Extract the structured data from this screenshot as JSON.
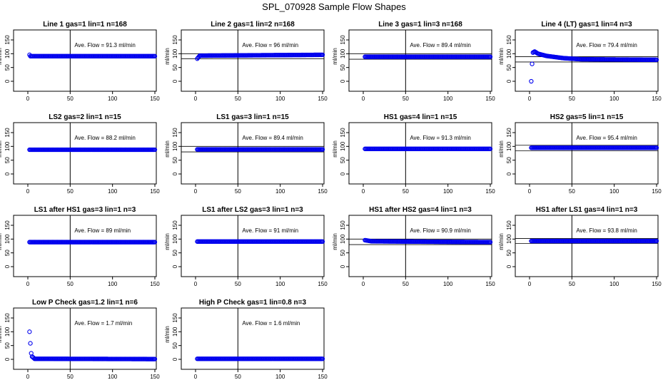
{
  "title": "SPL_070928  Sample Flow Shapes",
  "colors": {
    "points": "#0000ee",
    "axes": "#000000",
    "background": "#ffffff"
  },
  "chart_data": [
    {
      "type": "scatter",
      "title": "Line 1 gas=1 lin=1 n=168",
      "ylabel": "ml/min",
      "xlim": [
        0,
        150
      ],
      "ylim": [
        -20,
        190
      ],
      "xticks": [
        "0",
        "50",
        "100",
        "150"
      ],
      "yticks": [
        "0",
        "50",
        "100",
        "150"
      ],
      "vline": 50,
      "hlines": [],
      "annotation": "Ave. Flow =  91.3  ml/min",
      "series": [
        {
          "x": [
            2,
            3,
            150
          ],
          "y": [
            96,
            91,
            91
          ]
        }
      ]
    },
    {
      "type": "scatter",
      "title": "Line 2 gas=1 lin=2 n=168",
      "ylabel": "ml/min",
      "xlim": [
        0,
        150
      ],
      "ylim": [
        -20,
        190
      ],
      "xticks": [
        "0",
        "50",
        "100",
        "150"
      ],
      "yticks": [
        "0",
        "50",
        "100",
        "150"
      ],
      "vline": 50,
      "hlines": [
        82,
        100
      ],
      "annotation": "Ave. Flow =  96  ml/min",
      "series": [
        {
          "x": [
            2,
            5,
            150
          ],
          "y": [
            82,
            93,
            96
          ]
        }
      ]
    },
    {
      "type": "scatter",
      "title": "Line 3 gas=1 lin=3 n=168",
      "ylabel": "ml/min",
      "xlim": [
        0,
        150
      ],
      "ylim": [
        -20,
        190
      ],
      "xticks": [
        "0",
        "50",
        "100",
        "150"
      ],
      "yticks": [
        "0",
        "50",
        "100",
        "150"
      ],
      "vline": 50,
      "hlines": [
        80,
        100
      ],
      "annotation": "Ave. Flow =  89.4  ml/min",
      "series": [
        {
          "x": [
            2,
            150
          ],
          "y": [
            89,
            89
          ]
        }
      ]
    },
    {
      "type": "scatter",
      "title": "Line 4 (LT) gas=1 lin=4 n=3",
      "ylabel": "ml/min",
      "xlim": [
        0,
        150
      ],
      "ylim": [
        -20,
        190
      ],
      "xticks": [
        "0",
        "50",
        "100",
        "150"
      ],
      "yticks": [
        "0",
        "50",
        "100",
        "150"
      ],
      "vline": 50,
      "hlines": [
        70,
        89
      ],
      "annotation": "Ave. Flow =  79.4  ml/min",
      "series": [
        {
          "x": [
            2,
            3,
            4,
            6,
            10,
            20,
            40,
            60,
            100,
            150
          ],
          "y": [
            0,
            63,
            104,
            108,
            100,
            92,
            84,
            80,
            79,
            78
          ]
        }
      ]
    },
    {
      "type": "scatter",
      "title": "LS2 gas=2 lin=1 n=15",
      "ylabel": "ml/min",
      "xlim": [
        0,
        150
      ],
      "ylim": [
        -20,
        190
      ],
      "xticks": [
        "0",
        "50",
        "100",
        "150"
      ],
      "yticks": [
        "0",
        "50",
        "100",
        "150"
      ],
      "vline": 50,
      "hlines": [],
      "annotation": "Ave. Flow =  88.2  ml/min",
      "series": [
        {
          "x": [
            2,
            150
          ],
          "y": [
            88,
            88
          ]
        }
      ]
    },
    {
      "type": "scatter",
      "title": "LS1 gas=3 lin=1 n=15",
      "ylabel": "ml/min",
      "xlim": [
        0,
        150
      ],
      "ylim": [
        -20,
        190
      ],
      "xticks": [
        "0",
        "50",
        "100",
        "150"
      ],
      "yticks": [
        "0",
        "50",
        "100",
        "150"
      ],
      "vline": 50,
      "hlines": [
        80,
        100
      ],
      "annotation": "Ave. Flow =  89.4  ml/min",
      "series": [
        {
          "x": [
            2,
            150
          ],
          "y": [
            89,
            89
          ]
        }
      ]
    },
    {
      "type": "scatter",
      "title": "HS1 gas=4 lin=1 n=15",
      "ylabel": "ml/min",
      "xlim": [
        0,
        150
      ],
      "ylim": [
        -20,
        190
      ],
      "xticks": [
        "0",
        "50",
        "100",
        "150"
      ],
      "yticks": [
        "0",
        "50",
        "100",
        "150"
      ],
      "vline": 50,
      "hlines": [],
      "annotation": "Ave. Flow =  91.3  ml/min",
      "series": [
        {
          "x": [
            2,
            150
          ],
          "y": [
            91,
            91
          ]
        }
      ]
    },
    {
      "type": "scatter",
      "title": "HS2 gas=5 lin=1 n=15",
      "ylabel": "ml/min",
      "xlim": [
        0,
        150
      ],
      "ylim": [
        -20,
        190
      ],
      "xticks": [
        "0",
        "50",
        "100",
        "150"
      ],
      "yticks": [
        "0",
        "50",
        "100",
        "150"
      ],
      "vline": 50,
      "hlines": [
        84,
        104
      ],
      "annotation": "Ave. Flow =  95.4  ml/min",
      "series": [
        {
          "x": [
            2,
            150
          ],
          "y": [
            95,
            95
          ]
        }
      ]
    },
    {
      "type": "scatter",
      "title": "LS1 after HS1 gas=3 lin=1 n=3",
      "ylabel": "ml/min",
      "xlim": [
        0,
        150
      ],
      "ylim": [
        -20,
        190
      ],
      "xticks": [
        "0",
        "50",
        "100",
        "150"
      ],
      "yticks": [
        "0",
        "50",
        "100",
        "150"
      ],
      "vline": 50,
      "hlines": [],
      "annotation": "Ave. Flow =  89  ml/min",
      "series": [
        {
          "x": [
            2,
            150
          ],
          "y": [
            89,
            89
          ]
        }
      ]
    },
    {
      "type": "scatter",
      "title": "LS1 after LS2 gas=3 lin=1 n=3",
      "ylabel": "ml/min",
      "xlim": [
        0,
        150
      ],
      "ylim": [
        -20,
        190
      ],
      "xticks": [
        "0",
        "50",
        "100",
        "150"
      ],
      "yticks": [
        "0",
        "50",
        "100",
        "150"
      ],
      "vline": 50,
      "hlines": [],
      "annotation": "Ave. Flow =  91  ml/min",
      "series": [
        {
          "x": [
            2,
            150
          ],
          "y": [
            91,
            91
          ]
        }
      ]
    },
    {
      "type": "scatter",
      "title": "HS1 after HS2 gas=4 lin=1 n=3",
      "ylabel": "ml/min",
      "xlim": [
        0,
        150
      ],
      "ylim": [
        -20,
        190
      ],
      "xticks": [
        "0",
        "50",
        "100",
        "150"
      ],
      "yticks": [
        "0",
        "50",
        "100",
        "150"
      ],
      "vline": 50,
      "hlines": [
        80,
        100
      ],
      "annotation": "Ave. Flow =  90.9  ml/min",
      "series": [
        {
          "x": [
            2,
            10,
            150
          ],
          "y": [
            96,
            92,
            89
          ]
        }
      ]
    },
    {
      "type": "scatter",
      "title": "HS1 after LS1 gas=4 lin=1 n=3",
      "ylabel": "ml/min",
      "xlim": [
        0,
        150
      ],
      "ylim": [
        -20,
        190
      ],
      "xticks": [
        "0",
        "50",
        "100",
        "150"
      ],
      "yticks": [
        "0",
        "50",
        "100",
        "150"
      ],
      "vline": 50,
      "hlines": [
        84,
        102
      ],
      "annotation": "Ave. Flow =  93.8  ml/min",
      "series": [
        {
          "x": [
            2,
            150
          ],
          "y": [
            93,
            93
          ]
        }
      ]
    },
    {
      "type": "scatter",
      "title": "Low P Check gas=1.2 lin=1 n=6",
      "ylabel": "ml/min",
      "xlim": [
        0,
        150
      ],
      "ylim": [
        -20,
        190
      ],
      "xticks": [
        "0",
        "50",
        "100",
        "150"
      ],
      "yticks": [
        "0",
        "50",
        "100",
        "150"
      ],
      "vline": 50,
      "hlines": [],
      "annotation": "Ave. Flow =  1.7  ml/min",
      "series": [
        {
          "x": [
            2,
            3,
            4,
            5,
            8,
            150
          ],
          "y": [
            100,
            58,
            22,
            10,
            2,
            1
          ]
        }
      ]
    },
    {
      "type": "scatter",
      "title": "High P Check gas=1 lin=0.8 n=3",
      "ylabel": "ml/min",
      "xlim": [
        0,
        150
      ],
      "ylim": [
        -20,
        190
      ],
      "xticks": [
        "0",
        "50",
        "100",
        "150"
      ],
      "yticks": [
        "0",
        "50",
        "100",
        "150"
      ],
      "vline": 50,
      "hlines": [],
      "annotation": "Ave. Flow =  1.6  ml/min",
      "series": [
        {
          "x": [
            2,
            150
          ],
          "y": [
            2,
            2
          ]
        }
      ]
    }
  ]
}
